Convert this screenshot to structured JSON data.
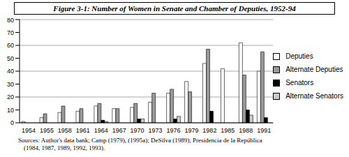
{
  "chart_data": {
    "type": "bar",
    "title": "Figure 3-1: Number of Women in Senate and Chamber of Deputies, 1952-94",
    "annotations": [
      "Sources: Author's data bank; Camp (1979), (1995a); DeSilva (1989); Presidencia de la República",
      "(1984, 1987, 1989, 1992, 1993)."
    ],
    "categories": [
      "1954",
      "1955",
      "1958",
      "1961",
      "1964",
      "1967",
      "1970",
      "1973",
      "1976",
      "1979",
      "1982",
      "1985",
      "1988",
      "1991"
    ],
    "series": [
      {
        "name": "Deputies",
        "color": "#ffffff",
        "values": [
          1,
          4,
          8,
          9,
          13,
          11,
          12,
          16,
          23,
          32,
          46,
          42,
          62,
          40
        ]
      },
      {
        "name": "Alternate Deputies",
        "color": "#999999",
        "values": [
          null,
          7,
          13,
          11,
          15,
          11,
          15,
          23,
          26,
          24,
          57,
          null,
          37,
          55
        ]
      },
      {
        "name": "Senators",
        "color": "#000000",
        "values": [
          null,
          null,
          null,
          null,
          2,
          null,
          3,
          null,
          3,
          null,
          9,
          null,
          10,
          4
        ]
      },
      {
        "name": "Alternate Senators",
        "color": "#cccccc",
        "values": [
          null,
          null,
          null,
          null,
          1,
          null,
          3,
          null,
          5,
          null,
          null,
          null,
          6,
          null
        ]
      }
    ],
    "ylim": [
      0,
      80
    ],
    "yticks": [
      0,
      10,
      20,
      30,
      40,
      50,
      60,
      70,
      80
    ],
    "grid": true,
    "legend": "right"
  }
}
